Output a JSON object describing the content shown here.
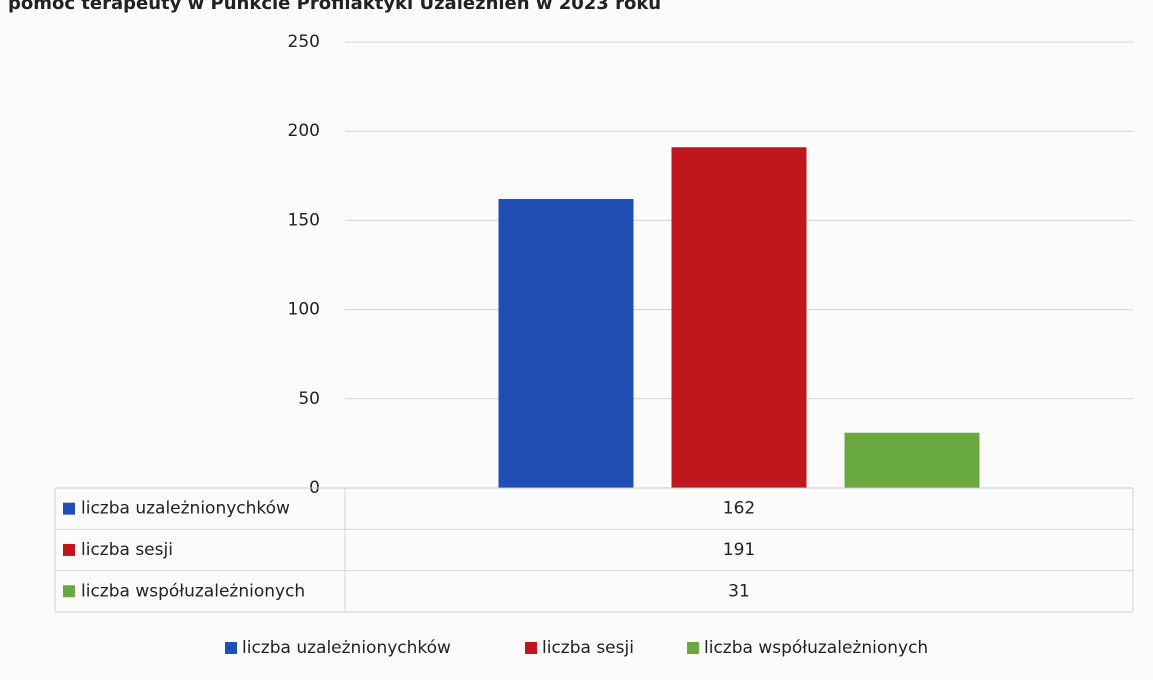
{
  "chart_data": {
    "type": "bar",
    "title": "pomoc terapeuty w Punkcie Profilaktyki Uzależnień w 2023 roku",
    "categories": [
      null
    ],
    "series": [
      {
        "name": "liczba uzależnionychków",
        "color": "#1f4fb4",
        "values": [
          162
        ]
      },
      {
        "name": "liczba sesji",
        "color": "#c0161e",
        "values": [
          191
        ]
      },
      {
        "name": "liczba współuzależnionych",
        "color": "#6aa842",
        "values": [
          31
        ]
      }
    ],
    "ylim": [
      0,
      250
    ],
    "yticks": [
      0,
      50,
      100,
      150,
      200,
      250
    ],
    "grid": true,
    "legend": "bottom",
    "data_table": true
  }
}
